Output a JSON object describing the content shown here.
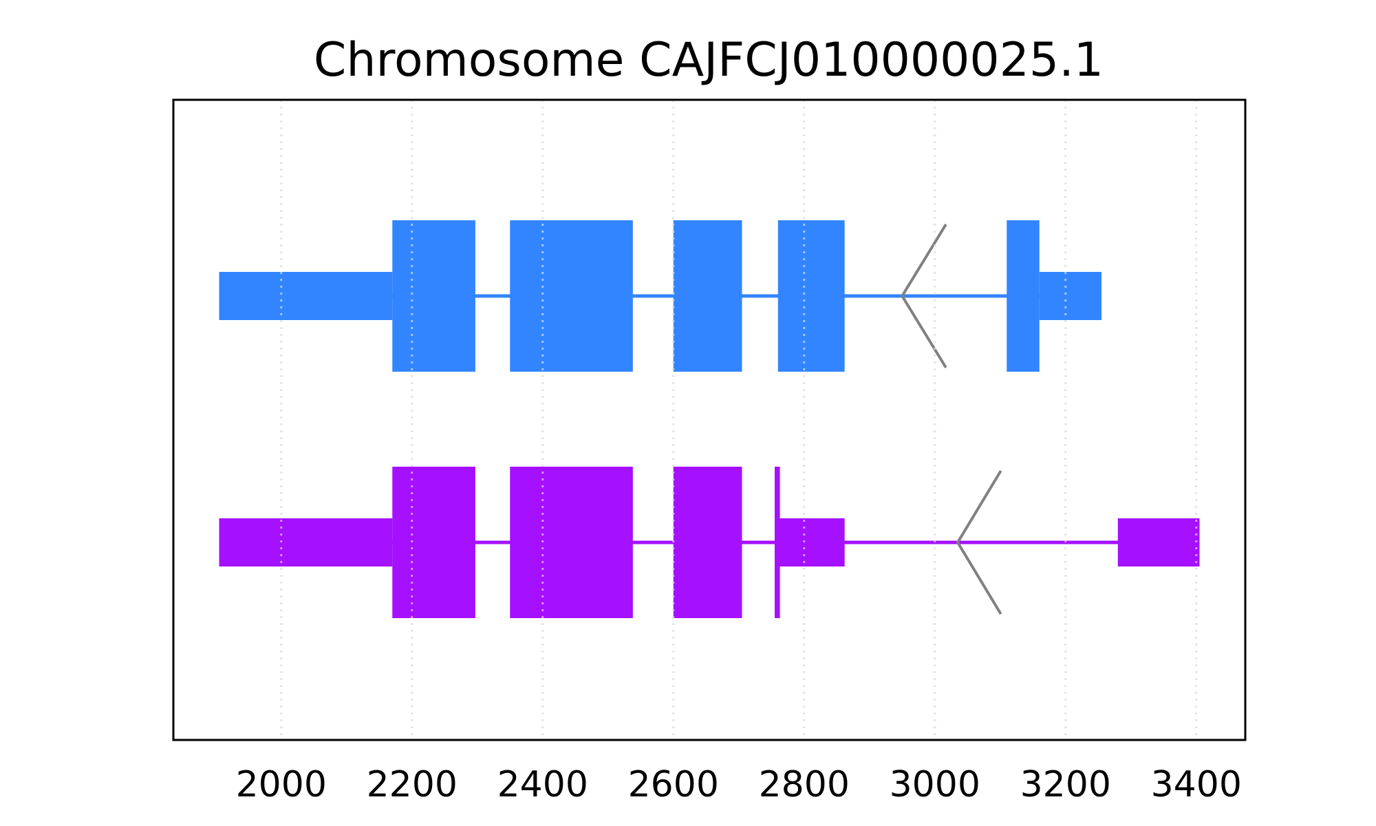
{
  "chart_data": {
    "type": "gene-track",
    "title": "Chromosome CAJFCJ010000025.1",
    "xlabel": "",
    "ylabel": "",
    "xlim": [
      1835,
      3475
    ],
    "xticks": [
      2000,
      2200,
      2400,
      2600,
      2800,
      3000,
      3200,
      3400
    ],
    "grid": "vertical-dotted",
    "legend": "none",
    "tracks": [
      {
        "color": "#3385ff",
        "span": [
          1905,
          3255
        ],
        "utr": [
          [
            1905,
            2170
          ],
          [
            3160,
            3255
          ]
        ],
        "cds": [
          [
            2170,
            2297
          ],
          [
            2350,
            2538
          ],
          [
            2600,
            2705
          ],
          [
            2760,
            2862
          ],
          [
            3110,
            3160
          ]
        ],
        "connector": {
          "vertex": 2950,
          "tip": 3017
        }
      },
      {
        "color": "#a510ff",
        "span": [
          1905,
          3405
        ],
        "utr": [
          [
            1905,
            2170
          ],
          [
            2760,
            2862
          ],
          [
            3280,
            3405
          ]
        ],
        "cds": [
          [
            2170,
            2297
          ],
          [
            2350,
            2538
          ],
          [
            2600,
            2705
          ],
          [
            2755,
            2763
          ]
        ],
        "connector": {
          "vertex": 3035,
          "tip": 3101
        }
      }
    ],
    "connector_color": "#808080"
  }
}
